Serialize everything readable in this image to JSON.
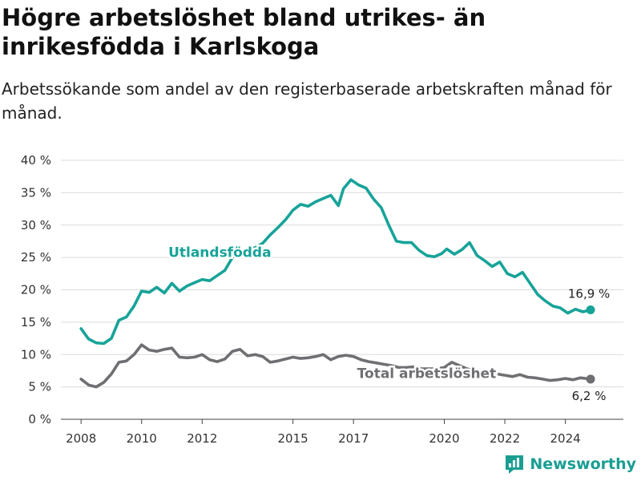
{
  "title": "Högre arbetslöshet bland utrikes- än inrikesfödda i Karlskoga",
  "subtitle": "Arbetssökande som andel av den registerbaserade arbetskraften månad för månad.",
  "brand": "Newsworthy",
  "colors": {
    "utlandsfodda": "#17a398",
    "total": "#6f6f73",
    "grid": "#dcdcdc",
    "brand": "#1a9e92"
  },
  "chart_data": {
    "type": "line",
    "x_ticks": [
      "2008",
      "2010",
      "2012",
      "2015",
      "2017",
      "2020",
      "2022",
      "2024"
    ],
    "y_ticks": [
      "0 %",
      "5 %",
      "10 %",
      "15 %",
      "20 %",
      "25 %",
      "30 %",
      "35 %",
      "40 %"
    ],
    "ylim": [
      0,
      40
    ],
    "xlim": [
      "2007-05",
      "2025-12"
    ],
    "grid": true,
    "series": [
      {
        "name": "Utlandsfödda",
        "end_label": "16,9 %",
        "points": [
          [
            "2008-01",
            14.0
          ],
          [
            "2008-04",
            12.4
          ],
          [
            "2008-07",
            11.8
          ],
          [
            "2008-10",
            11.7
          ],
          [
            "2009-01",
            12.5
          ],
          [
            "2009-04",
            15.3
          ],
          [
            "2009-07",
            15.8
          ],
          [
            "2009-10",
            17.5
          ],
          [
            "2010-01",
            19.8
          ],
          [
            "2010-04",
            19.6
          ],
          [
            "2010-07",
            20.4
          ],
          [
            "2010-10",
            19.5
          ],
          [
            "2011-01",
            21.0
          ],
          [
            "2011-04",
            19.8
          ],
          [
            "2011-07",
            20.6
          ],
          [
            "2011-10",
            21.1
          ],
          [
            "2012-01",
            21.6
          ],
          [
            "2012-04",
            21.4
          ],
          [
            "2012-07",
            22.2
          ],
          [
            "2012-10",
            23.0
          ],
          [
            "2013-01",
            25.0
          ],
          [
            "2013-04",
            26.0
          ],
          [
            "2013-07",
            26.2
          ],
          [
            "2013-10",
            26.5
          ],
          [
            "2014-01",
            27.2
          ],
          [
            "2014-04",
            28.5
          ],
          [
            "2014-07",
            29.6
          ],
          [
            "2014-10",
            30.8
          ],
          [
            "2015-01",
            32.3
          ],
          [
            "2015-04",
            33.2
          ],
          [
            "2015-07",
            32.9
          ],
          [
            "2015-10",
            33.6
          ],
          [
            "2016-01",
            34.1
          ],
          [
            "2016-04",
            34.6
          ],
          [
            "2016-07",
            33.0
          ],
          [
            "2016-09",
            35.6
          ],
          [
            "2016-12",
            37.0
          ],
          [
            "2017-03",
            36.2
          ],
          [
            "2017-06",
            35.7
          ],
          [
            "2017-09",
            34.0
          ],
          [
            "2017-12",
            32.7
          ],
          [
            "2018-03",
            30.0
          ],
          [
            "2018-06",
            27.5
          ],
          [
            "2018-09",
            27.3
          ],
          [
            "2018-12",
            27.3
          ],
          [
            "2019-03",
            26.1
          ],
          [
            "2019-06",
            25.3
          ],
          [
            "2019-09",
            25.1
          ],
          [
            "2019-12",
            25.6
          ],
          [
            "2020-02",
            26.3
          ],
          [
            "2020-05",
            25.5
          ],
          [
            "2020-08",
            26.2
          ],
          [
            "2020-11",
            27.3
          ],
          [
            "2021-02",
            25.3
          ],
          [
            "2021-05",
            24.5
          ],
          [
            "2021-08",
            23.6
          ],
          [
            "2021-11",
            24.3
          ],
          [
            "2022-02",
            22.5
          ],
          [
            "2022-05",
            22.0
          ],
          [
            "2022-08",
            22.7
          ],
          [
            "2022-11",
            21.0
          ],
          [
            "2023-02",
            19.3
          ],
          [
            "2023-05",
            18.3
          ],
          [
            "2023-08",
            17.5
          ],
          [
            "2023-11",
            17.2
          ],
          [
            "2024-02",
            16.4
          ],
          [
            "2024-05",
            17.0
          ],
          [
            "2024-08",
            16.6
          ],
          [
            "2024-11",
            16.9
          ]
        ]
      },
      {
        "name": "Total arbetslöshet",
        "end_label": "6,2 %",
        "points": [
          [
            "2008-01",
            6.2
          ],
          [
            "2008-04",
            5.3
          ],
          [
            "2008-07",
            5.0
          ],
          [
            "2008-10",
            5.7
          ],
          [
            "2009-01",
            7.0
          ],
          [
            "2009-04",
            8.8
          ],
          [
            "2009-07",
            9.0
          ],
          [
            "2009-10",
            10.0
          ],
          [
            "2010-01",
            11.5
          ],
          [
            "2010-04",
            10.7
          ],
          [
            "2010-07",
            10.5
          ],
          [
            "2010-10",
            10.8
          ],
          [
            "2011-01",
            11.0
          ],
          [
            "2011-04",
            9.6
          ],
          [
            "2011-07",
            9.5
          ],
          [
            "2011-10",
            9.6
          ],
          [
            "2012-01",
            10.0
          ],
          [
            "2012-04",
            9.2
          ],
          [
            "2012-07",
            8.9
          ],
          [
            "2012-10",
            9.3
          ],
          [
            "2013-01",
            10.5
          ],
          [
            "2013-04",
            10.8
          ],
          [
            "2013-07",
            9.8
          ],
          [
            "2013-10",
            10.0
          ],
          [
            "2014-01",
            9.7
          ],
          [
            "2014-04",
            8.8
          ],
          [
            "2014-07",
            9.0
          ],
          [
            "2014-10",
            9.3
          ],
          [
            "2015-01",
            9.6
          ],
          [
            "2015-04",
            9.4
          ],
          [
            "2015-07",
            9.5
          ],
          [
            "2015-10",
            9.7
          ],
          [
            "2016-01",
            10.0
          ],
          [
            "2016-04",
            9.2
          ],
          [
            "2016-07",
            9.7
          ],
          [
            "2016-10",
            9.9
          ],
          [
            "2017-01",
            9.7
          ],
          [
            "2017-04",
            9.2
          ],
          [
            "2017-07",
            8.9
          ],
          [
            "2017-10",
            8.7
          ],
          [
            "2018-01",
            8.5
          ],
          [
            "2018-04",
            8.3
          ],
          [
            "2018-07",
            8.0
          ],
          [
            "2018-10",
            8.0
          ],
          [
            "2019-01",
            8.1
          ],
          [
            "2019-04",
            7.8
          ],
          [
            "2019-07",
            7.8
          ],
          [
            "2019-10",
            7.8
          ],
          [
            "2020-01",
            8.0
          ],
          [
            "2020-04",
            8.8
          ],
          [
            "2020-07",
            8.3
          ],
          [
            "2020-10",
            7.8
          ],
          [
            "2021-01",
            7.5
          ],
          [
            "2021-04",
            7.2
          ],
          [
            "2021-07",
            7.0
          ],
          [
            "2021-10",
            7.0
          ],
          [
            "2022-01",
            6.8
          ],
          [
            "2022-04",
            6.6
          ],
          [
            "2022-07",
            6.9
          ],
          [
            "2022-10",
            6.5
          ],
          [
            "2023-01",
            6.4
          ],
          [
            "2023-04",
            6.2
          ],
          [
            "2023-07",
            6.0
          ],
          [
            "2023-10",
            6.1
          ],
          [
            "2024-01",
            6.3
          ],
          [
            "2024-04",
            6.1
          ],
          [
            "2024-07",
            6.4
          ],
          [
            "2024-11",
            6.2
          ]
        ]
      }
    ]
  }
}
